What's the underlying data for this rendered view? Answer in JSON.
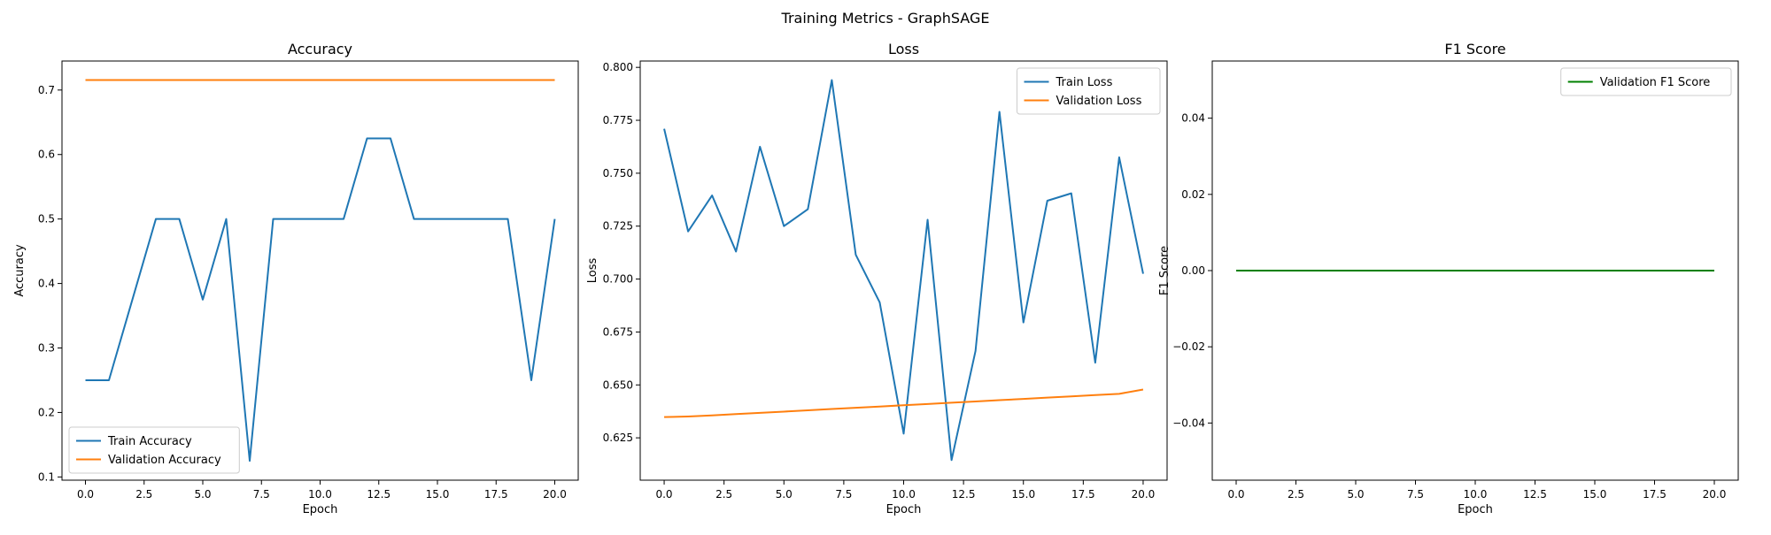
{
  "figure": {
    "suptitle": "Training Metrics - GraphSAGE"
  },
  "chart_data": [
    {
      "type": "line",
      "title": "Accuracy",
      "xlabel": "Epoch",
      "ylabel": "Accuracy",
      "xlim": [
        -1.0,
        21.0
      ],
      "ylim": [
        0.095,
        0.745
      ],
      "xticks": [
        0.0,
        2.5,
        5.0,
        7.5,
        10.0,
        12.5,
        15.0,
        17.5,
        20.0
      ],
      "xtick_labels": [
        "0.0",
        "2.5",
        "5.0",
        "7.5",
        "10.0",
        "12.5",
        "15.0",
        "17.5",
        "20.0"
      ],
      "yticks": [
        0.1,
        0.2,
        0.3,
        0.4,
        0.5,
        0.6,
        0.7
      ],
      "ytick_labels": [
        "0.1",
        "0.2",
        "0.3",
        "0.4",
        "0.5",
        "0.6",
        "0.7"
      ],
      "legend": "lower-left",
      "grid": false,
      "x": [
        0,
        1,
        2,
        3,
        4,
        5,
        6,
        7,
        8,
        9,
        10,
        11,
        12,
        13,
        14,
        15,
        16,
        17,
        18,
        19,
        20
      ],
      "series": [
        {
          "name": "Train Accuracy",
          "color": "#1f77b4",
          "values": [
            0.25,
            0.25,
            0.375,
            0.5,
            0.5,
            0.375,
            0.5,
            0.125,
            0.5,
            0.5,
            0.5,
            0.5,
            0.625,
            0.625,
            0.5,
            0.5,
            0.5,
            0.5,
            0.5,
            0.25,
            0.5
          ]
        },
        {
          "name": "Validation Accuracy",
          "color": "#ff7f0e",
          "values": [
            0.7155,
            0.7155,
            0.7155,
            0.7155,
            0.7155,
            0.7155,
            0.7155,
            0.7155,
            0.7155,
            0.7155,
            0.7155,
            0.7155,
            0.7155,
            0.7155,
            0.7155,
            0.7155,
            0.7155,
            0.7155,
            0.7155,
            0.7155,
            0.7155
          ]
        }
      ]
    },
    {
      "type": "line",
      "title": "Loss",
      "xlabel": "Epoch",
      "ylabel": "Loss",
      "xlim": [
        -1.0,
        21.0
      ],
      "ylim": [
        0.605,
        0.803
      ],
      "xticks": [
        0.0,
        2.5,
        5.0,
        7.5,
        10.0,
        12.5,
        15.0,
        17.5,
        20.0
      ],
      "xtick_labels": [
        "0.0",
        "2.5",
        "5.0",
        "7.5",
        "10.0",
        "12.5",
        "15.0",
        "17.5",
        "20.0"
      ],
      "yticks": [
        0.625,
        0.65,
        0.675,
        0.7,
        0.725,
        0.75,
        0.775,
        0.8
      ],
      "ytick_labels": [
        "0.625",
        "0.650",
        "0.675",
        "0.700",
        "0.725",
        "0.750",
        "0.775",
        "0.800"
      ],
      "legend": "upper-right",
      "grid": false,
      "x": [
        0,
        1,
        2,
        3,
        4,
        5,
        6,
        7,
        8,
        9,
        10,
        11,
        12,
        13,
        14,
        15,
        16,
        17,
        18,
        19,
        20
      ],
      "series": [
        {
          "name": "Train Loss",
          "color": "#1f77b4",
          "values": [
            0.771,
            0.7225,
            0.7395,
            0.713,
            0.7625,
            0.725,
            0.733,
            0.794,
            0.7115,
            0.689,
            0.627,
            0.728,
            0.6145,
            0.666,
            0.779,
            0.6795,
            0.737,
            0.7405,
            0.6605,
            0.7575,
            0.7025
          ]
        },
        {
          "name": "Validation Loss",
          "color": "#ff7f0e",
          "values": [
            0.6348,
            0.6351,
            0.6356,
            0.6362,
            0.6368,
            0.6374,
            0.638,
            0.6386,
            0.6392,
            0.6398,
            0.6404,
            0.641,
            0.6416,
            0.6422,
            0.6428,
            0.6434,
            0.644,
            0.6446,
            0.6452,
            0.6458,
            0.6478
          ]
        }
      ]
    },
    {
      "type": "line",
      "title": "F1 Score",
      "xlabel": "Epoch",
      "ylabel": "F1 Score",
      "xlim": [
        -1.0,
        21.0
      ],
      "ylim": [
        -0.055,
        0.055
      ],
      "xticks": [
        0.0,
        2.5,
        5.0,
        7.5,
        10.0,
        12.5,
        15.0,
        17.5,
        20.0
      ],
      "xtick_labels": [
        "0.0",
        "2.5",
        "5.0",
        "7.5",
        "10.0",
        "12.5",
        "15.0",
        "17.5",
        "20.0"
      ],
      "yticks": [
        -0.04,
        -0.02,
        0.0,
        0.02,
        0.04
      ],
      "ytick_labels": [
        "−0.04",
        "−0.02",
        "0.00",
        "0.02",
        "0.04"
      ],
      "legend": "upper-right",
      "grid": false,
      "x": [
        0,
        1,
        2,
        3,
        4,
        5,
        6,
        7,
        8,
        9,
        10,
        11,
        12,
        13,
        14,
        15,
        16,
        17,
        18,
        19,
        20
      ],
      "series": [
        {
          "name": "Validation F1 Score",
          "color": "#008000",
          "values": [
            0,
            0,
            0,
            0,
            0,
            0,
            0,
            0,
            0,
            0,
            0,
            0,
            0,
            0,
            0,
            0,
            0,
            0,
            0,
            0,
            0
          ]
        }
      ]
    }
  ]
}
